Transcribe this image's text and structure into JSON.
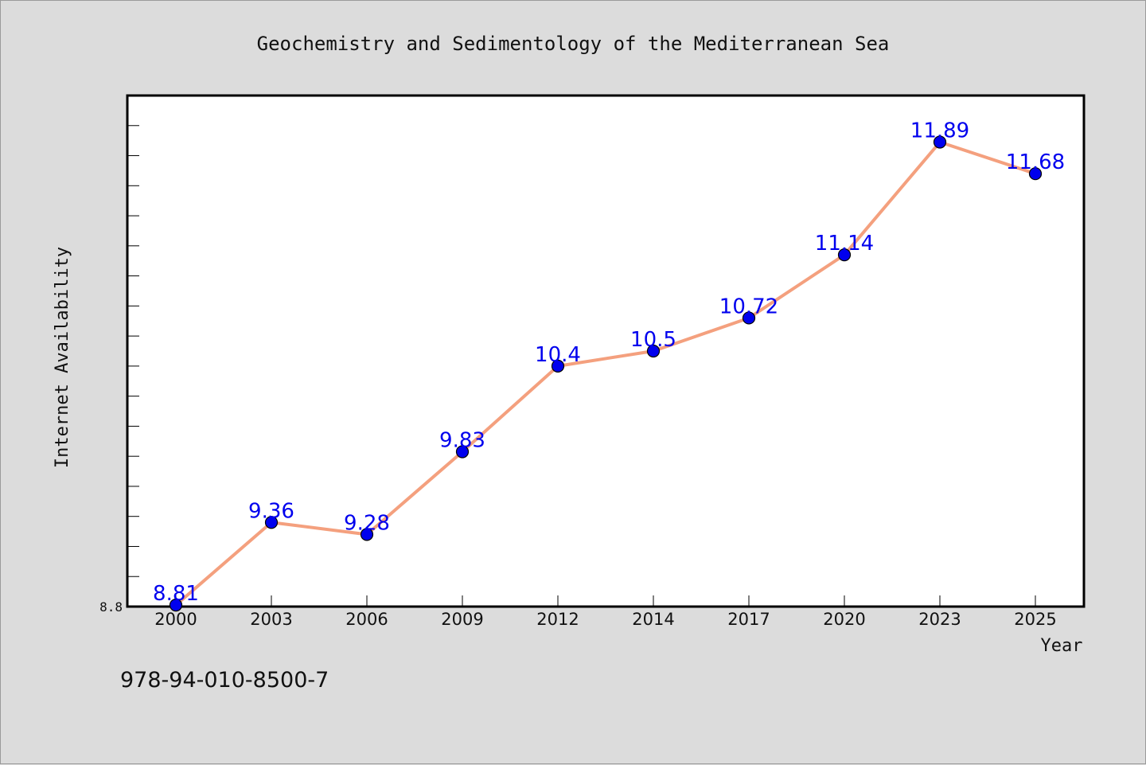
{
  "chart_data": {
    "type": "line",
    "title": "Geochemistry and Sedimentology of the Mediterranean Sea",
    "xlabel": "Year",
    "ylabel": "Internet Availability",
    "categories": [
      "2000",
      "2003",
      "2006",
      "2009",
      "2012",
      "2014",
      "2017",
      "2020",
      "2023",
      "2025"
    ],
    "series": [
      {
        "values": [
          8.81,
          9.36,
          9.28,
          9.83,
          10.4,
          10.5,
          10.72,
          11.14,
          11.89,
          11.68
        ]
      }
    ],
    "data_labels": [
      "8.81",
      "9.36",
      "9.28",
      "9.83",
      "10.4",
      "10.5",
      "10.72",
      "11.14",
      "11.89",
      "11.68"
    ],
    "ylim": [
      8.8,
      12.2
    ],
    "y_tick_labels": [
      "8.8"
    ],
    "grid": false,
    "legend": "none",
    "colors": {
      "line": "#f4a07e",
      "marker": "#0000ee",
      "marker_edge": "#000000",
      "data_label": "#0000ee",
      "frame": "#000000",
      "plot_bg": "#ffffff",
      "page_bg": "#dcdcdc"
    }
  },
  "footer": {
    "isbn": "978-94-010-8500-7"
  }
}
